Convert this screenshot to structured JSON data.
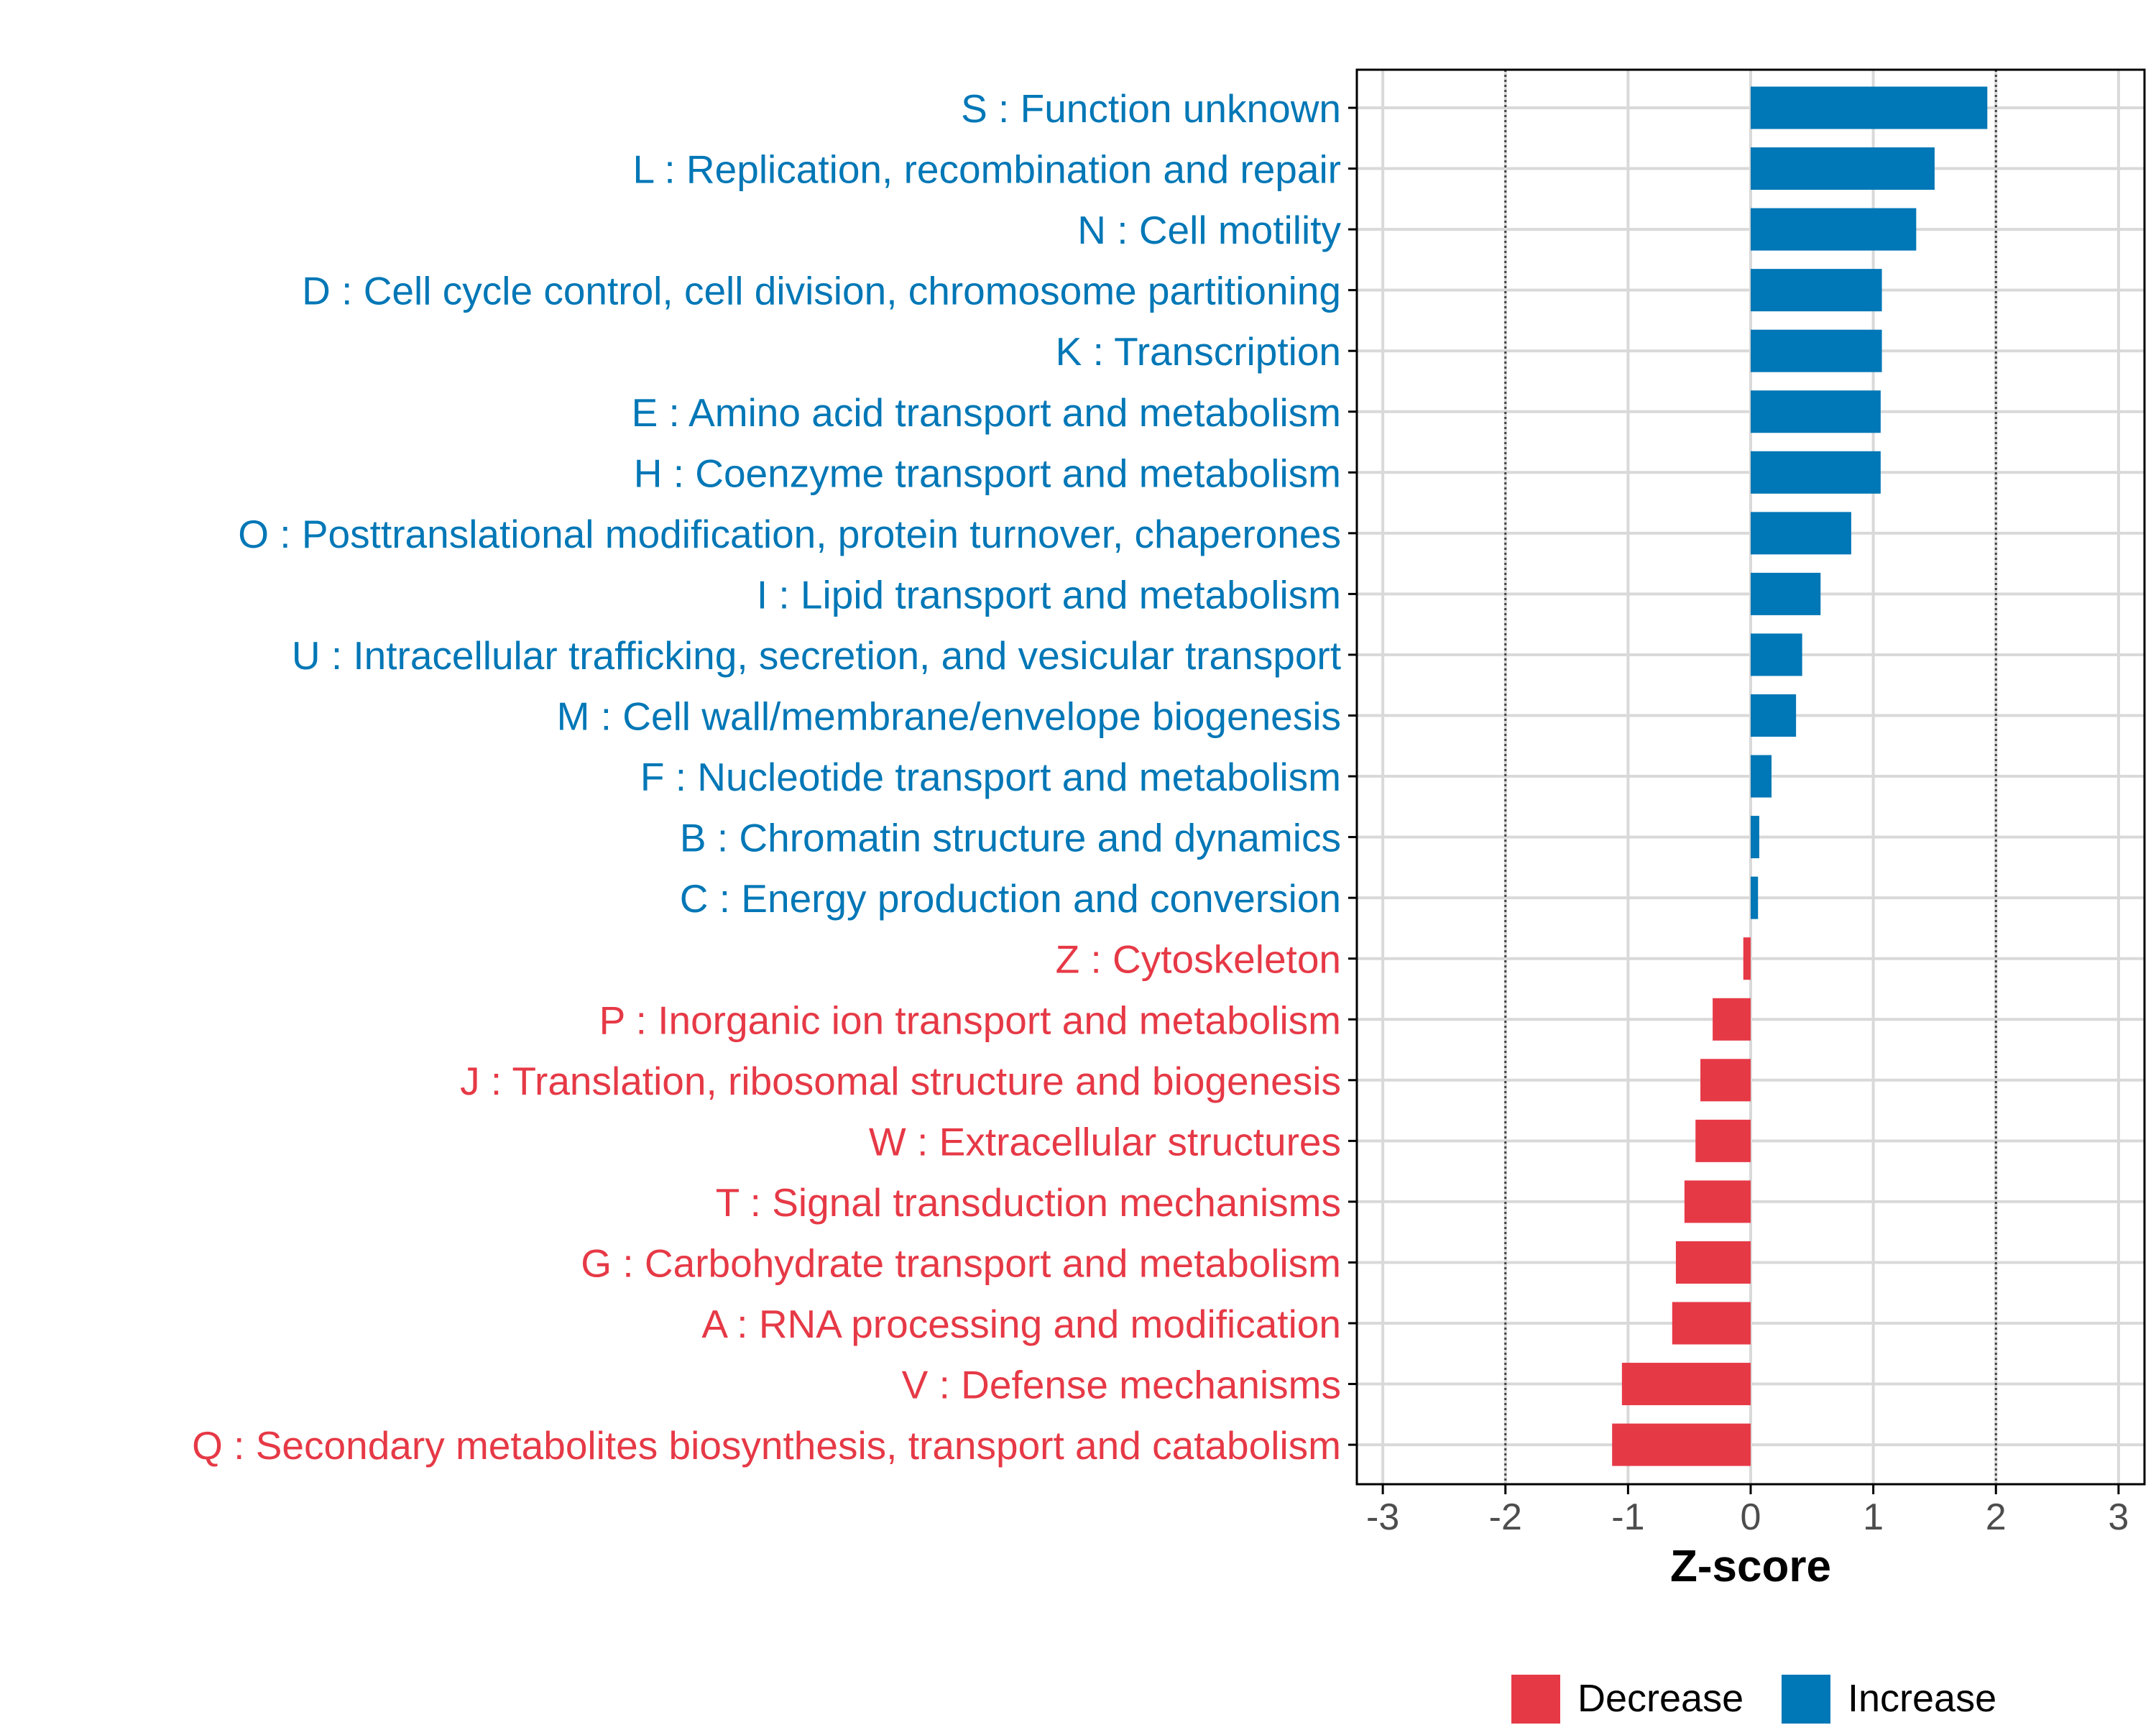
{
  "colors": {
    "increase": "#0077B6",
    "decrease": "#E63946",
    "grid": "#D9D9D9",
    "axis": "#000000",
    "tick_text": "#4D4D4D",
    "threshold": "#444444"
  },
  "chart_data": {
    "type": "bar",
    "orientation": "horizontal",
    "title": "",
    "xlabel": "Z-score",
    "ylabel": "",
    "xlim": [
      -3.2,
      3.2
    ],
    "x_ticks": [
      -3,
      -2,
      -1,
      0,
      1,
      2,
      3
    ],
    "x_tick_labels": [
      "-3",
      "-2",
      "-1",
      "0",
      "1",
      "2",
      "3"
    ],
    "threshold_lines": [
      -2,
      2
    ],
    "grid": true,
    "legend_position": "bottom",
    "legend": [
      {
        "label": "Decrease",
        "color": "#E63946"
      },
      {
        "label": "Increase",
        "color": "#0077B6"
      }
    ],
    "categories": [
      "S : Function unknown",
      "L : Replication, recombination and repair",
      "N : Cell motility",
      "D : Cell cycle control, cell division, chromosome partitioning",
      "K : Transcription",
      "E : Amino acid transport and metabolism",
      "H : Coenzyme transport and metabolism",
      "O : Posttranslational modification, protein turnover, chaperones",
      "I : Lipid transport and metabolism",
      "U : Intracellular trafficking, secretion, and vesicular transport",
      "M : Cell wall/membrane/envelope biogenesis",
      "F : Nucleotide transport and metabolism",
      "B : Chromatin structure and dynamics",
      "C : Energy production and conversion",
      "Z : Cytoskeleton",
      "P : Inorganic ion transport and metabolism",
      "J : Translation, ribosomal structure and biogenesis",
      "W : Extracellular structures",
      "T : Signal transduction mechanisms",
      "G : Carbohydrate transport and metabolism",
      "A : RNA processing and modification",
      "V : Defense mechanisms",
      "Q : Secondary metabolites biosynthesis, transport and catabolism"
    ],
    "values": [
      1.93,
      1.5,
      1.35,
      1.07,
      1.07,
      1.06,
      1.06,
      0.82,
      0.57,
      0.42,
      0.37,
      0.17,
      0.07,
      0.06,
      -0.06,
      -0.31,
      -0.41,
      -0.45,
      -0.54,
      -0.61,
      -0.64,
      -1.05,
      -1.13
    ]
  }
}
